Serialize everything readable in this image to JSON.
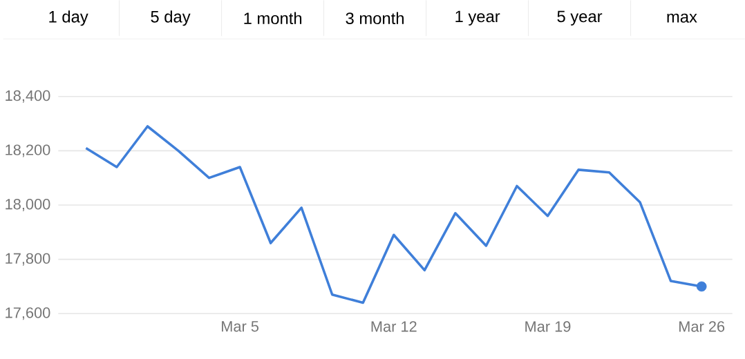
{
  "chart_data": {
    "type": "line",
    "annotations": [
      "1 day",
      "5 day",
      "1 month",
      "3 month",
      "1 year",
      "5 year",
      "max"
    ],
    "categories": [
      null,
      null,
      null,
      null,
      null,
      "Mar 5",
      null,
      null,
      null,
      null,
      "Mar 12",
      null,
      null,
      null,
      null,
      "Mar 19",
      null,
      null,
      null,
      null,
      "Mar 26"
    ],
    "series": [
      {
        "color": "#3f7fd9",
        "values": [
          18210,
          18140,
          18290,
          18200,
          18100,
          18140,
          17860,
          17990,
          17670,
          17640,
          17890,
          17760,
          17970,
          17850,
          18070,
          17960,
          18130,
          18120,
          18010,
          17720,
          17700
        ]
      }
    ],
    "ylim": [
      17600,
      18400
    ],
    "yticks": [
      {
        "value": 17600,
        "label": "17,600"
      },
      {
        "value": 17800,
        "label": "17,800"
      },
      {
        "value": 18000,
        "label": "18,000"
      },
      {
        "value": 18200,
        "label": "18,200"
      },
      {
        "value": 18400,
        "label": "18,400"
      }
    ],
    "grid": "y",
    "line_style": "solid"
  }
}
